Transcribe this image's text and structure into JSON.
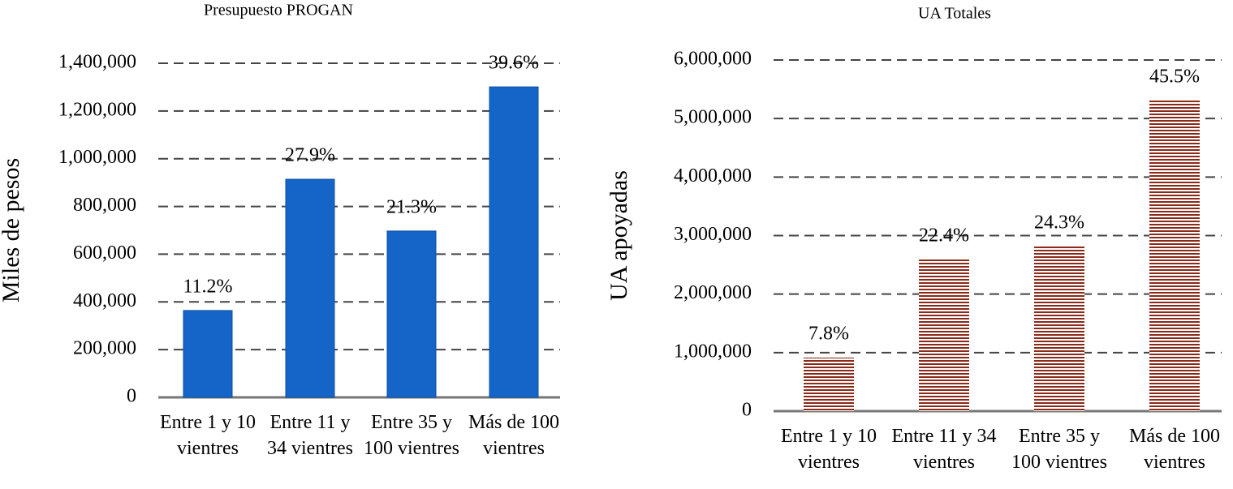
{
  "chart_data": [
    {
      "type": "bar",
      "title": "Presupuesto PROGAN",
      "y_label": "Miles de pesos",
      "categories": [
        "Entre 1 y 10 vientres",
        "Entre 11 y 34 vientres",
        "Entre 35 y 100 vientres",
        "Más de 100 vientres"
      ],
      "values": [
        364000,
        914000,
        697000,
        1301000
      ],
      "annotations": [
        "11.2%",
        "27.9%",
        "21.3%",
        "39.6%"
      ],
      "color": "#1565c8",
      "fill_pattern": "solid",
      "ylim": [
        0,
        1400000
      ],
      "yticks": [
        0,
        {
          "value": 200000,
          "label": "200,000"
        },
        {
          "value": 400000,
          "label": "400,000"
        },
        {
          "value": 600000,
          "label": "600,000"
        },
        {
          "value": 800000,
          "label": "800,000"
        },
        {
          "value": 1000000,
          "label": "1,000,000"
        },
        {
          "value": 1200000,
          "label": "1,200,000"
        },
        {
          "value": 1400000,
          "label": "1,400,000"
        }
      ],
      "grid": true
    },
    {
      "type": "bar",
      "title": "UA Totales",
      "y_label": "UA apoyadas",
      "categories": [
        "Entre 1 y 10 vientres",
        "Entre 11 y 34 vientres",
        "Entre 35 y 100 vientres",
        "Más de 100 vientres"
      ],
      "values": [
        915000,
        2591000,
        2813000,
        5307000
      ],
      "annotations": [
        "7.8%",
        "22.4%",
        "24.3%",
        "45.5%"
      ],
      "color": "#8b2a1a",
      "fill_pattern": "horizontal-stripes",
      "ylim": [
        0,
        6000000
      ],
      "yticks": [
        0,
        {
          "value": 1000000,
          "label": "1,000,000"
        },
        {
          "value": 2000000,
          "label": "2,000,000"
        },
        {
          "value": 3000000,
          "label": "3,000,000"
        },
        {
          "value": 4000000,
          "label": "4,000,000"
        },
        {
          "value": 5000000,
          "label": "5,000,000"
        },
        {
          "value": 6000000,
          "label": "6,000,000"
        }
      ],
      "grid": true
    }
  ]
}
